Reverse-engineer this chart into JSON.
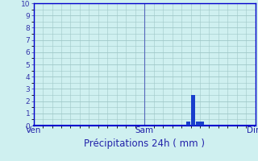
{
  "title": "Précipitations 24h ( mm )",
  "background_color": "#cff0f0",
  "bar_color": "#1a3ecc",
  "grid_color": "#a0c8c8",
  "axis_line_color": "#0000cc",
  "tick_label_color": "#3333aa",
  "xlabel_color": "#2222aa",
  "ylim": [
    0,
    10
  ],
  "yticks": [
    0,
    1,
    2,
    3,
    4,
    5,
    6,
    7,
    8,
    9,
    10
  ],
  "xlim": [
    0,
    48
  ],
  "day_labels": [
    {
      "label": "Ven",
      "x": 0
    },
    {
      "label": "Sam",
      "x": 24
    },
    {
      "label": "Dim",
      "x": 48
    }
  ],
  "bars": [
    {
      "x": 33.5,
      "height": 0.35
    },
    {
      "x": 34.5,
      "height": 2.5
    },
    {
      "x": 35.5,
      "height": 0.3
    },
    {
      "x": 36.5,
      "height": 0.35
    }
  ],
  "bar_width": 0.85,
  "minor_x_step": 2,
  "minor_y_step": 0.5
}
